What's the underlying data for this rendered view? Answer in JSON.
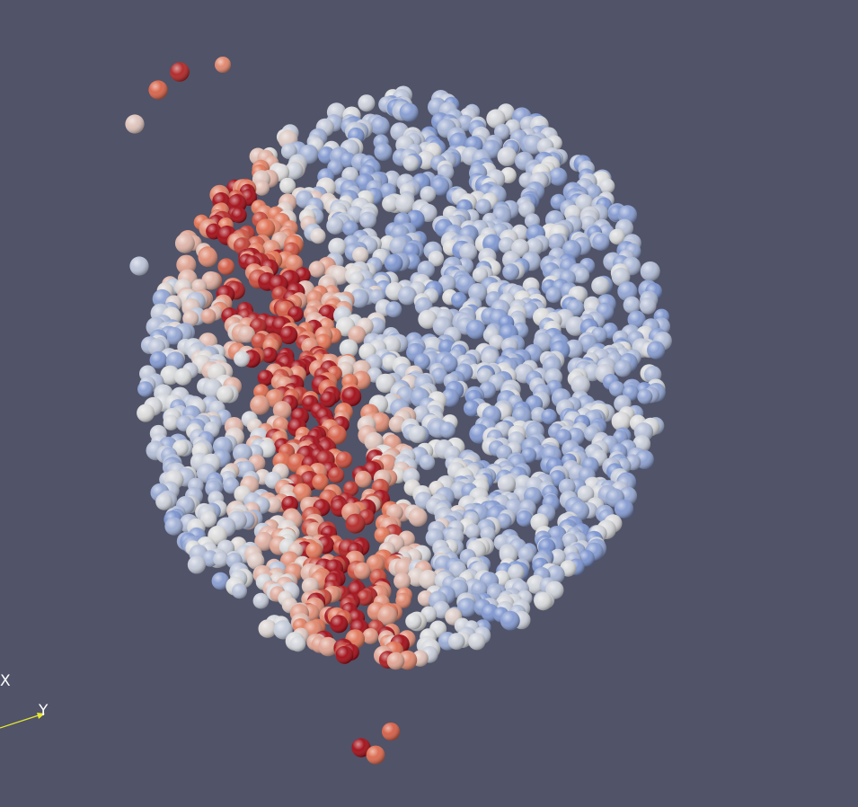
{
  "axes": {
    "x_label": "X",
    "y_label": "Y",
    "y_color": "#e6e632"
  },
  "palette": {
    "background": "#515368",
    "cool": "#4a6fc8",
    "mid": "#dcdcdc",
    "warm": "#e07050",
    "hot": "#a00a14"
  }
}
